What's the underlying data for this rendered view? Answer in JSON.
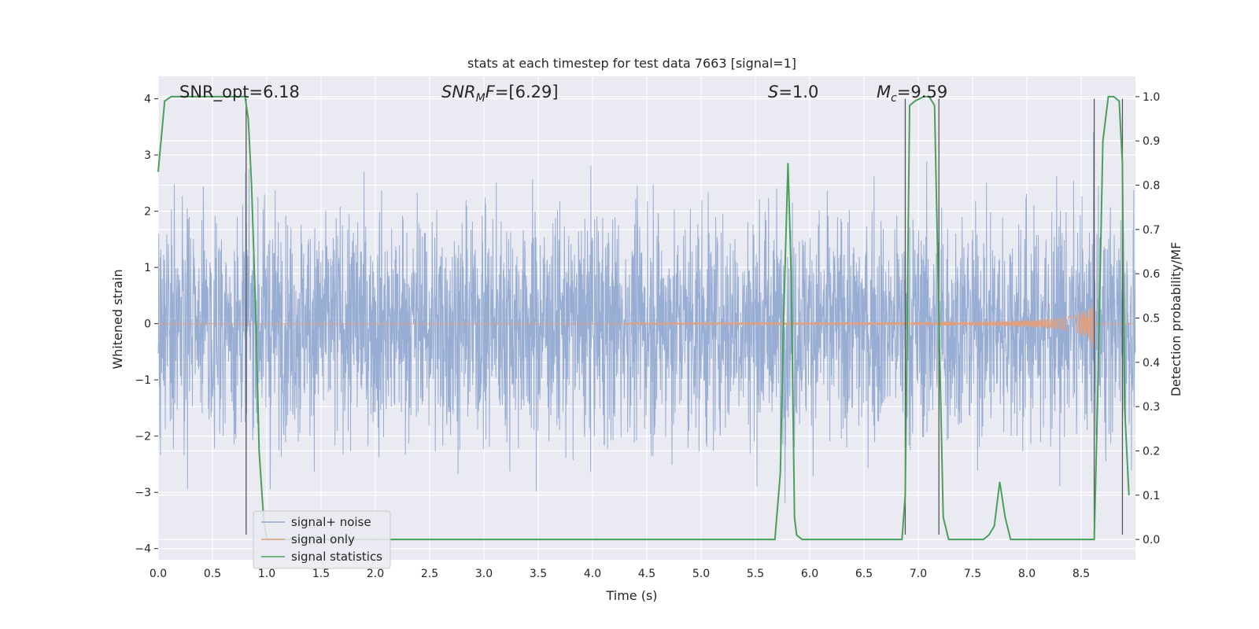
{
  "chart_data": {
    "type": "line",
    "title": "stats at each timestep for test data 7663 [signal=1]",
    "xlabel": "Time (s)",
    "ylabel": "Whitened strain",
    "ylabel_right": "Detection probability/MF",
    "xlim": [
      0,
      9.0
    ],
    "ylim": [
      -4.2,
      4.4
    ],
    "ylim_right": [
      -0.046,
      1.046
    ],
    "x_ticks": [
      "0.0",
      "0.5",
      "1.0",
      "1.5",
      "2.0",
      "2.5",
      "3.0",
      "3.5",
      "4.0",
      "4.5",
      "5.0",
      "5.5",
      "6.0",
      "6.5",
      "7.0",
      "7.5",
      "8.0",
      "8.5"
    ],
    "y_ticks": [
      "-4",
      "-3",
      "-2",
      "-1",
      "0",
      "1",
      "2",
      "3",
      "4"
    ],
    "y_ticks_right": [
      "0.0",
      "0.1",
      "0.2",
      "0.3",
      "0.4",
      "0.5",
      "0.6",
      "0.7",
      "0.8",
      "0.9",
      "1.0"
    ],
    "grid": true,
    "legend_position": "lower-left",
    "annotations": {
      "snr_opt": "SNR_opt=6.18",
      "snr_mf": "SNRMF=[6.29]",
      "s": "S=1.0",
      "mc": "Mc=9.59"
    },
    "series": [
      {
        "name": "signal+ noise",
        "color": "#8fa6cf",
        "axis": "left",
        "note_noise_sigma": 1.0
      },
      {
        "name": "signal only",
        "color": "#e0a07f",
        "axis": "left",
        "chirp_start": 4.3,
        "chirp_merger": 8.62,
        "peak_amplitude": 0.55
      },
      {
        "name": "signal statistics",
        "color": "#4aa05a",
        "axis": "right",
        "x": [
          0.0,
          0.06,
          0.12,
          0.25,
          0.5,
          0.75,
          0.8,
          0.83,
          0.86,
          0.9,
          0.93,
          0.97,
          1.0,
          2.0,
          3.0,
          4.0,
          5.0,
          5.6,
          5.68,
          5.73,
          5.76,
          5.8,
          5.83,
          5.86,
          5.88,
          5.93,
          6.0,
          6.5,
          6.85,
          6.88,
          6.92,
          6.97,
          7.05,
          7.1,
          7.15,
          7.19,
          7.23,
          7.28,
          7.35,
          7.6,
          7.65,
          7.7,
          7.75,
          7.8,
          7.85,
          7.9,
          8.0,
          8.5,
          8.62,
          8.65,
          8.7,
          8.75,
          8.8,
          8.85,
          8.88,
          8.9,
          8.94
        ],
        "values": [
          0.83,
          0.99,
          1.0,
          1.0,
          1.0,
          1.0,
          1.0,
          0.95,
          0.8,
          0.5,
          0.2,
          0.05,
          0.0,
          0.0,
          0.0,
          0.0,
          0.0,
          0.0,
          0.0,
          0.15,
          0.5,
          0.85,
          0.6,
          0.05,
          0.01,
          0.0,
          0.0,
          0.0,
          0.0,
          0.1,
          0.98,
          0.99,
          1.0,
          1.0,
          0.98,
          0.5,
          0.05,
          0.0,
          0.0,
          0.0,
          0.01,
          0.03,
          0.13,
          0.05,
          0.0,
          0.0,
          0.0,
          0.0,
          0.0,
          0.3,
          0.9,
          1.0,
          1.0,
          0.99,
          0.85,
          0.3,
          0.1
        ]
      }
    ],
    "vertical_markers": [
      0.81,
      6.88,
      7.19,
      8.62,
      8.88
    ]
  }
}
